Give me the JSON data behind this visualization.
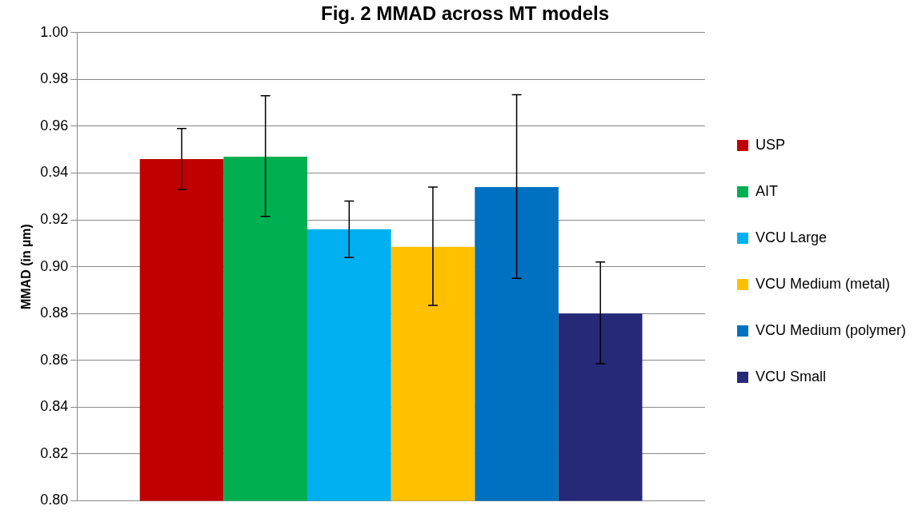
{
  "chart_data": {
    "type": "bar",
    "title": "Fig. 2 MMAD across MT models",
    "ylabel": "MMAD (in µm)",
    "categories": [
      null
    ],
    "series": [
      {
        "name": "USP",
        "color": "#c00000",
        "values": [
          0.946
        ],
        "errors": [
          [
            0.933,
            0.959
          ]
        ]
      },
      {
        "name": "AIT",
        "color": "#00b050",
        "values": [
          0.947
        ],
        "errors": [
          [
            0.9215,
            0.973
          ]
        ]
      },
      {
        "name": "VCU Large",
        "color": "#00b0f0",
        "values": [
          0.916
        ],
        "errors": [
          [
            0.904,
            0.928
          ]
        ]
      },
      {
        "name": "VCU Medium (metal)",
        "color": "#ffc000",
        "values": [
          0.9085
        ],
        "errors": [
          [
            0.8835,
            0.934
          ]
        ]
      },
      {
        "name": "VCU Medium (polymer)",
        "color": "#0070c0",
        "values": [
          0.934
        ],
        "errors": [
          [
            0.895,
            0.9735
          ]
        ]
      },
      {
        "name": "VCU Small",
        "color": "#262878",
        "values": [
          0.88
        ],
        "errors": [
          [
            0.8585,
            0.902
          ]
        ]
      }
    ],
    "ylim": [
      0.8,
      1.0
    ],
    "yticks": [
      {
        "value": 0.8,
        "label": "0.80"
      },
      {
        "value": 0.82,
        "label": "0.82"
      },
      {
        "value": 0.84,
        "label": "0.84"
      },
      {
        "value": 0.86,
        "label": "0.86"
      },
      {
        "value": 0.88,
        "label": "0.88"
      },
      {
        "value": 0.9,
        "label": "0.90"
      },
      {
        "value": 0.92,
        "label": "0.92"
      },
      {
        "value": 0.94,
        "label": "0.94"
      },
      {
        "value": 0.96,
        "label": "0.96"
      },
      {
        "value": 0.98,
        "label": "0.98"
      },
      {
        "value": 1.0,
        "label": "1.00"
      }
    ],
    "grid": "y",
    "legend": "right"
  }
}
